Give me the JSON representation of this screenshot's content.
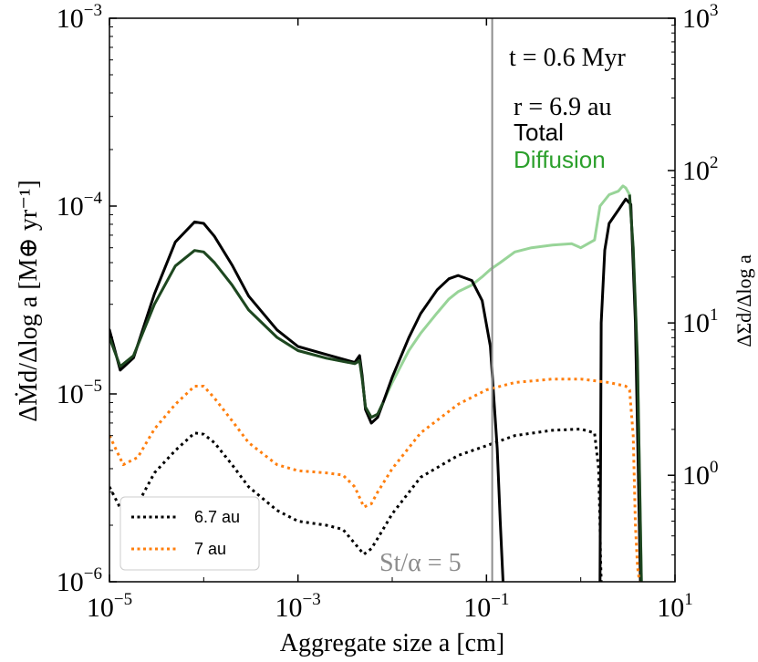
{
  "chart_data": {
    "type": "line",
    "title": "",
    "xlabel": "Aggregate size a [cm]",
    "ylabel": "ΔṀd/Δlog a [M⊕ yr⁻¹]",
    "ylabel_right": "ΔΣd/Δlog a",
    "xscale": "log",
    "yscale": "log",
    "xlim": [
      1e-05,
      10
    ],
    "ylim": [
      1e-06,
      0.001
    ],
    "ylim_right": [
      0.2,
      1000
    ],
    "x_ticks": [
      {
        "value": 1e-05,
        "base": "10",
        "exp": "−5"
      },
      {
        "value": 0.001,
        "base": "10",
        "exp": "−3"
      },
      {
        "value": 0.1,
        "base": "10",
        "exp": "−1"
      },
      {
        "value": 10.0,
        "base": "10",
        "exp": "1"
      }
    ],
    "x_ticks_minor": [
      {
        "value": 0.0001,
        "base": "10",
        "exp": "−4"
      },
      {
        "value": 0.01,
        "base": "10",
        "exp": "−2"
      },
      {
        "value": 1.0,
        "base": "10",
        "exp": "0"
      }
    ],
    "y_ticks": [
      {
        "value": 1e-06,
        "base": "10",
        "exp": "−6"
      },
      {
        "value": 1e-05,
        "base": "10",
        "exp": "−5"
      },
      {
        "value": 0.0001,
        "base": "10",
        "exp": "−4"
      },
      {
        "value": 0.001,
        "base": "10",
        "exp": "−3"
      }
    ],
    "y_ticks_right": [
      {
        "value": 1,
        "base": "10",
        "exp": "0"
      },
      {
        "value": 10,
        "base": "10",
        "exp": "1"
      },
      {
        "value": 100,
        "base": "10",
        "exp": "2"
      },
      {
        "value": 1000,
        "base": "10",
        "exp": "3"
      }
    ],
    "vline": {
      "x": 0.115,
      "color": "#8c8c8c",
      "label": "St/α = 5"
    },
    "annotations": {
      "time": "t = 0.6 Myr",
      "radius": "r = 6.9 au",
      "total": "Total",
      "diffusion": "Diffusion"
    },
    "colors": {
      "total": "#000000",
      "total_dark": "#1e4620",
      "diffusion": "#2ca02c",
      "diffusion_light": "#98d498",
      "orange": "#ff7f0e",
      "vline": "#8c8c8c"
    },
    "legend": {
      "position": "lower-left",
      "entries": [
        {
          "label": "6.7 au",
          "color": "#000000",
          "style": "dotted"
        },
        {
          "label": "7 au",
          "color": "#ff7f0e",
          "style": "dotted"
        }
      ]
    },
    "series": [
      {
        "name": "Diffusion",
        "color": "#98d498",
        "style": "solid",
        "x": [
          1e-05,
          1.3e-05,
          1.8e-05,
          3e-05,
          5e-05,
          8e-05,
          0.0001,
          0.00013,
          0.0002,
          0.0003,
          0.0006,
          0.001,
          0.002,
          0.004,
          0.0045,
          0.0048,
          0.0052,
          0.006,
          0.007,
          0.008,
          0.01,
          0.015,
          0.02,
          0.03,
          0.04,
          0.05,
          0.07,
          0.09,
          0.11,
          0.14,
          0.2,
          0.3,
          0.5,
          0.8,
          1.0,
          1.4,
          1.6,
          2.0,
          2.5,
          2.8,
          3.0,
          3.3,
          3.6,
          4.0,
          4.4
        ],
        "y": [
          2e-05,
          1.4e-05,
          1.6e-05,
          3e-05,
          4.8e-05,
          5.8e-05,
          5.7e-05,
          5e-05,
          3.8e-05,
          2.8e-05,
          2e-05,
          1.7e-05,
          1.55e-05,
          1.45e-05,
          1.5e-05,
          1.2e-05,
          8.5e-06,
          7.5e-06,
          7.8e-06,
          9e-06,
          1.15e-05,
          1.7e-05,
          2.1e-05,
          2.7e-05,
          3.2e-05,
          3.5e-05,
          3.8e-05,
          4.2e-05,
          4.6e-05,
          5e-05,
          5.7e-05,
          6e-05,
          6.2e-05,
          6.3e-05,
          6e-05,
          6.6e-05,
          0.0001,
          0.000115,
          0.00012,
          0.000128,
          0.000125,
          0.000115,
          6e-05,
          1.5e-05,
          1e-06
        ]
      },
      {
        "name": "Total (right axis)",
        "color": "#000000",
        "style": "solid",
        "x": [
          1e-05,
          1.3e-05,
          1.8e-05,
          3e-05,
          5e-05,
          8e-05,
          0.0001,
          0.00013,
          0.0002,
          0.0003,
          0.0006,
          0.001,
          0.002,
          0.004,
          0.0045,
          0.0048,
          0.0052,
          0.006,
          0.007,
          0.008,
          0.01,
          0.015,
          0.02,
          0.03,
          0.04,
          0.05,
          0.07,
          0.09,
          0.11,
          0.13,
          0.14,
          0.15
        ],
        "y_right": [
          9.0,
          4.9,
          5.9,
          15.5,
          34,
          46,
          45,
          37,
          24,
          15,
          9.0,
          7.0,
          6.2,
          5.5,
          6.1,
          4.5,
          2.7,
          2.2,
          2.4,
          3.0,
          4.4,
          8.0,
          11.5,
          16.5,
          19.5,
          20.5,
          19,
          14,
          7,
          1.5,
          0.5,
          0.2
        ]
      },
      {
        "name": "Total peak (right axis)",
        "color": "#000000",
        "style": "solid",
        "x": [
          1.6,
          1.65,
          1.8,
          2.0,
          2.5,
          3.0,
          3.4,
          3.8,
          4.3
        ],
        "y_right": [
          0.2,
          10,
          30,
          45,
          55,
          65,
          60,
          10,
          0.2
        ]
      },
      {
        "name": "6.7 au",
        "color": "#000000",
        "style": "dotted",
        "x": [
          1e-05,
          1.4e-05,
          2e-05,
          3e-05,
          5e-05,
          8e-05,
          0.0001,
          0.00013,
          0.0002,
          0.0003,
          0.0006,
          0.001,
          0.002,
          0.003,
          0.004,
          0.005,
          0.006,
          0.007,
          0.01,
          0.02,
          0.05,
          0.1,
          0.2,
          0.5,
          1.0,
          1.4,
          1.55,
          1.6,
          1.62,
          1.65
        ],
        "y": [
          3.2e-06,
          2.3e-06,
          2.6e-06,
          3.8e-06,
          5e-06,
          6.2e-06,
          6.1e-06,
          5.5e-06,
          4.2e-06,
          3.2e-06,
          2.4e-06,
          2.1e-06,
          2e-06,
          1.9e-06,
          1.6e-06,
          1.4e-06,
          1.5e-06,
          1.7e-06,
          2.3e-06,
          3.6e-06,
          4.7e-06,
          5.3e-06,
          6e-06,
          6.4e-06,
          6.5e-06,
          6.2e-06,
          4e-06,
          2e-06,
          1.4e-06,
          1e-06
        ]
      },
      {
        "name": "7 au",
        "color": "#ff7f0e",
        "style": "dotted",
        "x": [
          1e-05,
          1.4e-05,
          2e-05,
          3e-05,
          5e-05,
          8e-05,
          0.0001,
          0.00013,
          0.0002,
          0.0003,
          0.0006,
          0.001,
          0.002,
          0.003,
          0.004,
          0.005,
          0.006,
          0.007,
          0.01,
          0.02,
          0.05,
          0.1,
          0.2,
          0.5,
          1.0,
          2.0,
          3.0,
          3.3,
          3.6,
          3.8,
          4.0,
          4.2
        ],
        "y": [
          6e-06,
          4.2e-06,
          4.6e-06,
          6.5e-06,
          8.8e-06,
          1.1e-05,
          1.1e-05,
          9.5e-06,
          7.2e-06,
          5.5e-06,
          4.2e-06,
          3.9e-06,
          3.8e-06,
          3.7e-06,
          3.2e-06,
          2.5e-06,
          2.6e-06,
          3e-06,
          4e-06,
          6.2e-06,
          8.8e-06,
          1.05e-05,
          1.15e-05,
          1.2e-05,
          1.2e-05,
          1.15e-05,
          1.1e-05,
          1.05e-05,
          6e-06,
          2e-06,
          1.2e-06,
          1e-06
        ]
      }
    ]
  }
}
